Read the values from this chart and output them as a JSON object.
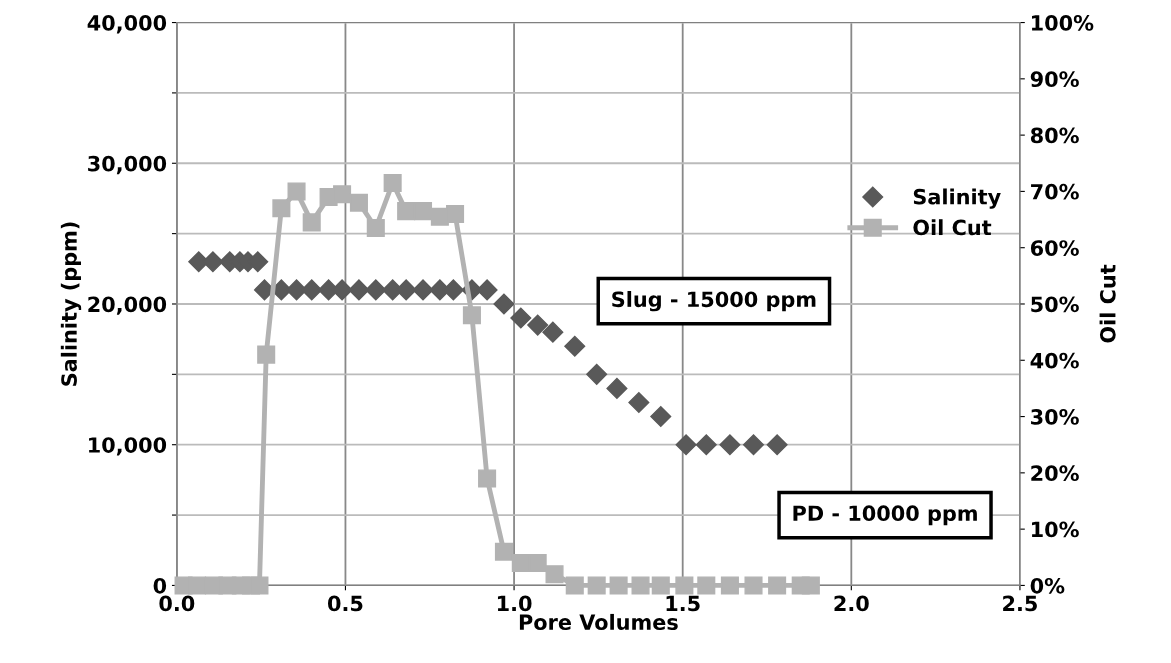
{
  "chart_data": {
    "type": "scatter",
    "xlabel": "Pore Volumes",
    "ylabel": "Salinity (ppm)",
    "y2label": "Oil Cut",
    "xlim": [
      0,
      2.5
    ],
    "xticks": [
      {
        "value": 0,
        "label": "0.0"
      },
      {
        "value": 0.5,
        "label": "0.5"
      },
      {
        "value": 1,
        "label": "1.0"
      },
      {
        "value": 1.5,
        "label": "1.5"
      },
      {
        "value": 2,
        "label": "2.0"
      },
      {
        "value": 2.5,
        "label": "2.5"
      }
    ],
    "ylim": [
      0,
      40000
    ],
    "yticks": [
      {
        "value": 0,
        "label": "0"
      },
      {
        "value": 5000,
        "label": null
      },
      {
        "value": 10000,
        "label": "10,000"
      },
      {
        "value": 15000,
        "label": null
      },
      {
        "value": 20000,
        "label": "20,000"
      },
      {
        "value": 25000,
        "label": null
      },
      {
        "value": 30000,
        "label": "30,000"
      },
      {
        "value": 35000,
        "label": null
      },
      {
        "value": 40000,
        "label": "40,000"
      }
    ],
    "y2lim": [
      0,
      100
    ],
    "y2ticks": [
      {
        "value": 0,
        "label": "0%"
      },
      {
        "value": 10,
        "label": "10%"
      },
      {
        "value": 20,
        "label": "20%"
      },
      {
        "value": 30,
        "label": "30%"
      },
      {
        "value": 40,
        "label": "40%"
      },
      {
        "value": 50,
        "label": "50%"
      },
      {
        "value": 60,
        "label": "60%"
      },
      {
        "value": 70,
        "label": "70%"
      },
      {
        "value": 80,
        "label": "80%"
      },
      {
        "value": 90,
        "label": "90%"
      },
      {
        "value": 100,
        "label": "100%"
      }
    ],
    "grid": true,
    "legend": "right",
    "annotations": [
      "Slug - 15000 ppm",
      "PD - 10000 ppm"
    ],
    "series": [
      {
        "name": "Salinity",
        "marker": "diamond",
        "color": "#595959",
        "x": [
          0.065,
          0.107,
          0.157,
          0.187,
          0.211,
          0.24,
          0.26,
          0.31,
          0.355,
          0.4,
          0.45,
          0.49,
          0.54,
          0.59,
          0.64,
          0.68,
          0.73,
          0.78,
          0.82,
          0.875,
          0.92,
          0.97,
          1.02,
          1.07,
          1.115,
          1.18,
          1.245,
          1.305,
          1.37,
          1.435,
          1.51,
          1.57,
          1.64,
          1.71,
          1.78
        ],
        "values": [
          23000,
          23000,
          23000,
          23000,
          23000,
          23000,
          21000,
          21000,
          21000,
          21000,
          21000,
          21000,
          21000,
          21000,
          21000,
          21000,
          21000,
          21000,
          21000,
          21000,
          21000,
          20000,
          19000,
          18500,
          18000,
          17000,
          15000,
          14000,
          13000,
          12000,
          10000,
          10000,
          10000,
          10000,
          10000
        ]
      },
      {
        "name": "Oil Cut",
        "type": "line",
        "marker": "square",
        "axis": "y2",
        "color": "#b2b2b2",
        "x": [
          0.02,
          0.06,
          0.11,
          0.15,
          0.19,
          0.22,
          0.245,
          0.265,
          0.31,
          0.355,
          0.4,
          0.45,
          0.49,
          0.54,
          0.59,
          0.64,
          0.68,
          0.73,
          0.78,
          0.825,
          0.875,
          0.92,
          0.97,
          1.02,
          1.07,
          1.12,
          1.18,
          1.245,
          1.31,
          1.375,
          1.435,
          1.505,
          1.57,
          1.64,
          1.71,
          1.78,
          1.85,
          1.88
        ],
        "values": [
          0,
          0,
          0,
          0,
          0,
          0,
          0,
          41,
          67,
          70,
          64.5,
          69,
          69.5,
          68,
          63.5,
          71.5,
          66.5,
          66.5,
          65.5,
          66,
          48,
          19,
          6,
          4,
          4,
          2,
          0,
          0,
          0,
          0,
          0,
          0,
          0,
          0,
          0,
          0,
          0,
          0
        ]
      }
    ]
  }
}
